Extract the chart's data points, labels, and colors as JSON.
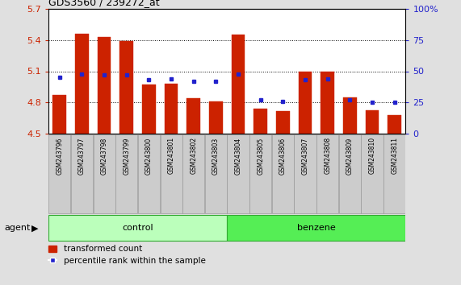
{
  "title": "GDS3560 / 239272_at",
  "samples": [
    "GSM243796",
    "GSM243797",
    "GSM243798",
    "GSM243799",
    "GSM243800",
    "GSM243801",
    "GSM243802",
    "GSM243803",
    "GSM243804",
    "GSM243805",
    "GSM243806",
    "GSM243807",
    "GSM243808",
    "GSM243809",
    "GSM243810",
    "GSM243811"
  ],
  "red_values": [
    4.87,
    5.46,
    5.43,
    5.39,
    4.97,
    4.98,
    4.84,
    4.81,
    5.45,
    4.74,
    4.72,
    5.1,
    5.1,
    4.85,
    4.73,
    4.68
  ],
  "blue_percentiles": [
    45,
    48,
    47,
    47,
    43,
    44,
    42,
    42,
    48,
    27,
    26,
    43,
    44,
    27,
    25,
    25
  ],
  "ylim_left": [
    4.5,
    5.7
  ],
  "ylim_right": [
    0,
    100
  ],
  "yticks_left": [
    4.5,
    4.8,
    5.1,
    5.4,
    5.7
  ],
  "yticks_right": [
    0,
    25,
    50,
    75,
    100
  ],
  "ytick_labels_left": [
    "4.5",
    "4.8",
    "5.1",
    "5.4",
    "5.7"
  ],
  "ytick_labels_right": [
    "0",
    "25",
    "50",
    "75",
    "100%"
  ],
  "control_count": 8,
  "benzene_count": 8,
  "control_label": "control",
  "benzene_label": "benzene",
  "agent_label": "agent",
  "legend_red": "transformed count",
  "legend_blue": "percentile rank within the sample",
  "bar_color": "#cc2200",
  "blue_color": "#2222cc",
  "control_bg": "#bbffbb",
  "benzene_bg": "#55ee55",
  "label_bg": "#cccccc",
  "bar_bottom": 4.5,
  "fig_bg": "#e0e0e0",
  "plot_bg": "#ffffff",
  "grid_yticks": [
    4.8,
    5.1,
    5.4
  ]
}
